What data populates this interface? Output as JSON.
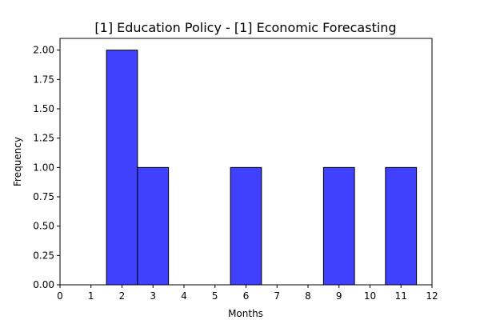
{
  "chart_data": {
    "type": "bar",
    "title": "[1] Education Policy - [1] Economic Forecasting",
    "xlabel": "Months",
    "ylabel": "Frequency",
    "xlim": [
      0,
      12
    ],
    "ylim": [
      0,
      2.1
    ],
    "x_ticks": [
      "0",
      "1",
      "2",
      "3",
      "4",
      "5",
      "6",
      "7",
      "8",
      "9",
      "10",
      "11",
      "12"
    ],
    "y_ticks": [
      "0.00",
      "0.25",
      "0.50",
      "0.75",
      "1.00",
      "1.25",
      "1.50",
      "1.75",
      "2.00"
    ],
    "bins": [
      {
        "start": 1.5,
        "end": 2.5,
        "value": 2
      },
      {
        "start": 2.5,
        "end": 3.5,
        "value": 1
      },
      {
        "start": 5.5,
        "end": 6.5,
        "value": 1
      },
      {
        "start": 8.5,
        "end": 9.5,
        "value": 1
      },
      {
        "start": 10.5,
        "end": 11.5,
        "value": 1
      }
    ],
    "bar_color": "#4040ff",
    "bar_edge_color": "#000000",
    "grid": false
  }
}
